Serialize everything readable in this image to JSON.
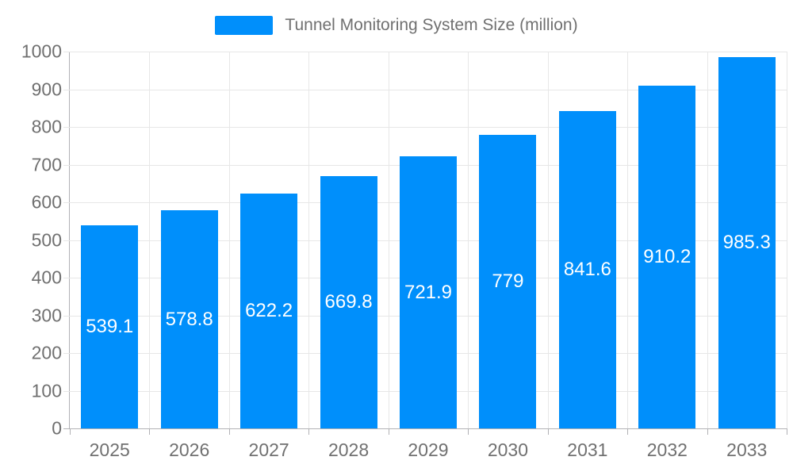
{
  "legend": {
    "label": "Tunnel Monitoring System Size (million)"
  },
  "chart_data": {
    "type": "bar",
    "title": "Tunnel Monitoring System Size (million)",
    "series_name": "Tunnel Monitoring System Size (million)",
    "categories": [
      "2025",
      "2026",
      "2027",
      "2028",
      "2029",
      "2030",
      "2031",
      "2032",
      "2033"
    ],
    "values": [
      539.1,
      578.8,
      622.2,
      669.8,
      721.9,
      779,
      841.6,
      910.2,
      985.3
    ],
    "value_labels": [
      "539.1",
      "578.8",
      "622.2",
      "669.8",
      "721.9",
      "779",
      "841.6",
      "910.2",
      "985.3"
    ],
    "xlabel": "",
    "ylabel": "",
    "ylim": [
      0,
      1000
    ],
    "y_ticks": [
      0,
      100,
      200,
      300,
      400,
      500,
      600,
      700,
      800,
      900,
      1000
    ],
    "grid": true,
    "legend_position": "top",
    "value_label_position": "center-inside",
    "colors": {
      "bar": "#008FFB",
      "value_label": "#ffffff",
      "axis_label": "#707070",
      "gridline": "#e7e7e7",
      "axis_line": "#b1b1b5",
      "background": "#ffffff"
    }
  }
}
